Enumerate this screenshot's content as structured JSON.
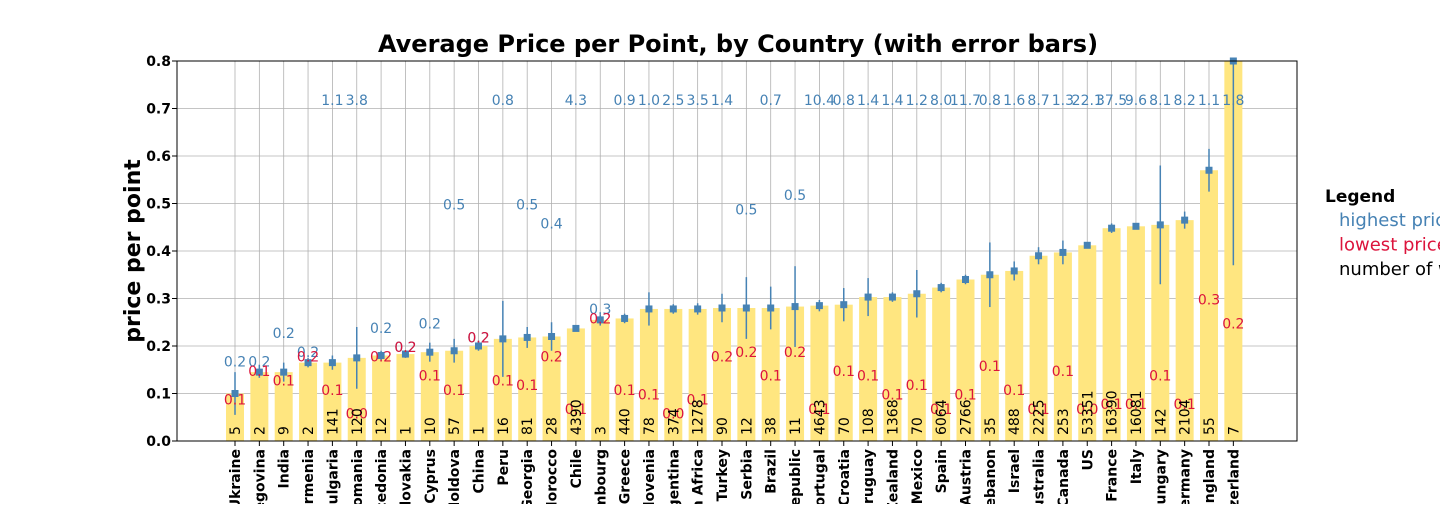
{
  "chart_data": {
    "type": "bar",
    "title": "Average Price per Point, by Country (with error bars)",
    "ylabel": "price per point",
    "xlabel": "",
    "ylim": [
      0,
      0.8
    ],
    "yticks": [
      "0.0",
      "0.1",
      "0.2",
      "0.3",
      "0.4",
      "0.5",
      "0.6",
      "0.7",
      "0.8"
    ],
    "grid": true,
    "categories": [
      "Ukraine",
      "Bosnia and Herzegovina",
      "India",
      "Armenia",
      "Bulgaria",
      "Romania",
      "Macedonia",
      "Slovakia",
      "Cyprus",
      "Moldova",
      "China",
      "Peru",
      "Georgia",
      "Morocco",
      "Chile",
      "Luxembourg",
      "Greece",
      "Slovenia",
      "Argentina",
      "South Africa",
      "Turkey",
      "Serbia",
      "Brazil",
      "Czech Republic",
      "Portugal",
      "Croatia",
      "Uruguay",
      "New Zealand",
      "Mexico",
      "Spain",
      "Austria",
      "Lebanon",
      "Israel",
      "Australia",
      "Canada",
      "US",
      "France",
      "Italy",
      "Hungary",
      "Germany",
      "England",
      "Switzerland"
    ],
    "category_labels_shown": [
      "Ukraine",
      "egovina",
      "India",
      "Armenia",
      "Bulgaria",
      "Romania",
      "acedonia",
      "Slovakia",
      "Cyprus",
      "Moldova",
      "China",
      "Peru",
      "Georgia",
      "Morocco",
      "Chile",
      "mbourg",
      "Greece",
      "Slovenia",
      "rgentina",
      "th Africa",
      "Turkey",
      "Serbia",
      "Brazil",
      "Republic",
      "Portugal",
      "Croatia",
      "Uruguay",
      "Zealand",
      "Mexico",
      "Spain",
      "Austria",
      "ebanon",
      "Israel",
      "ustralia",
      "Canada",
      "US",
      "France",
      "Italy",
      "Hungary",
      "ermany",
      "England",
      "tzerland"
    ],
    "values": [
      0.1,
      0.145,
      0.145,
      0.165,
      0.165,
      0.175,
      0.18,
      0.183,
      0.187,
      0.19,
      0.2,
      0.215,
      0.218,
      0.22,
      0.237,
      0.255,
      0.258,
      0.278,
      0.278,
      0.278,
      0.28,
      0.28,
      0.28,
      0.283,
      0.285,
      0.287,
      0.303,
      0.303,
      0.31,
      0.323,
      0.34,
      0.35,
      0.358,
      0.39,
      0.397,
      0.412,
      0.448,
      0.452,
      0.455,
      0.465,
      0.57,
      0.8
    ],
    "errors": [
      0.045,
      0.012,
      0.02,
      0.01,
      0.015,
      0.065,
      0.01,
      0.008,
      0.02,
      0.025,
      0.01,
      0.08,
      0.022,
      0.03,
      0.006,
      0.012,
      0.01,
      0.035,
      0.01,
      0.012,
      0.03,
      0.065,
      0.045,
      0.085,
      0.012,
      0.035,
      0.04,
      0.01,
      0.05,
      0.01,
      0.01,
      0.068,
      0.02,
      0.018,
      0.025,
      0.005,
      0.01,
      0.006,
      0.125,
      0.018,
      0.045,
      0.43
    ],
    "highest_price": [
      "0.2",
      "0.2",
      "0.2",
      "0.2",
      "1.1",
      "3.8",
      "0.2",
      "0.2",
      "0.2",
      "0.5",
      "0.2",
      "0.8",
      "0.5",
      "0.4",
      "4.3",
      "0.3",
      "0.9",
      "1.0",
      "2.5",
      "3.5",
      "1.4",
      "0.5",
      "0.7",
      "0.5",
      "10.4",
      "0.8",
      "1.4",
      "1.4",
      "1.2",
      "8.0",
      "11.7",
      "0.8",
      "1.6",
      "8.7",
      "1.3",
      "22.1",
      "37.5",
      "9.6",
      "8.1",
      "8.2",
      "1.1",
      "1.8"
    ],
    "highest_y": [
      0.17,
      0.17,
      0.23,
      0.19,
      0.72,
      0.72,
      0.24,
      0.2,
      0.25,
      0.5,
      0.22,
      0.72,
      0.5,
      0.46,
      0.72,
      0.28,
      0.72,
      0.72,
      0.72,
      0.72,
      0.72,
      0.49,
      0.72,
      0.52,
      0.72,
      0.72,
      0.72,
      0.72,
      0.72,
      0.72,
      0.72,
      0.72,
      0.72,
      0.72,
      0.72,
      0.72,
      0.72,
      0.72,
      0.72,
      0.72,
      0.72,
      0.72
    ],
    "lowest_price": [
      "0.1",
      "0.1",
      "0.1",
      "0.2",
      "0.1",
      "0.0",
      "0.2",
      "0.2",
      "0.1",
      "0.1",
      "0.2",
      "0.1",
      "0.1",
      "0.2",
      "0.1",
      "0.2",
      "0.1",
      "0.1",
      "0.0",
      "0.1",
      "0.2",
      "0.2",
      "0.1",
      "0.2",
      "0.1",
      "0.1",
      "0.1",
      "0.1",
      "0.1",
      "0.1",
      "0.1",
      "0.1",
      "0.1",
      "0.1",
      "0.1",
      "0.0",
      "0.1",
      "0.1",
      "0.1",
      "0.1",
      "0.3",
      "0.2"
    ],
    "lowest_y": [
      0.09,
      0.15,
      0.13,
      0.18,
      0.11,
      0.06,
      0.18,
      0.2,
      0.14,
      0.11,
      0.22,
      0.13,
      0.12,
      0.18,
      0.07,
      0.26,
      0.11,
      0.1,
      0.06,
      0.09,
      0.18,
      0.19,
      0.14,
      0.19,
      0.07,
      0.15,
      0.14,
      0.1,
      0.12,
      0.07,
      0.1,
      0.16,
      0.11,
      0.07,
      0.15,
      0.07,
      0.08,
      0.08,
      0.14,
      0.08,
      0.3,
      0.25
    ],
    "wine_count": [
      "5",
      "2",
      "9",
      "2",
      "141",
      "120",
      "12",
      "1",
      "10",
      "57",
      "1",
      "16",
      "81",
      "28",
      "4390",
      "3",
      "440",
      "78",
      "374",
      "1278",
      "90",
      "12",
      "38",
      "11",
      "4643",
      "70",
      "108",
      "1368",
      "70",
      "6064",
      "2766",
      "35",
      "488",
      "2225",
      "253",
      "53351",
      "16390",
      "16081",
      "142",
      "2104",
      "55",
      "7"
    ],
    "legend_title": "Legend",
    "legend": [
      {
        "label": "highest price",
        "color": "#4682b4"
      },
      {
        "label": "lowest price",
        "color": "#dc143c"
      },
      {
        "label": "number of wi",
        "color": "#000000"
      }
    ],
    "colors": {
      "bar": "#ffe680",
      "point": "#4682b4",
      "errorbar": "#4682b4",
      "highest": "#4682b4",
      "lowest": "#dc143c",
      "count": "#000000",
      "grid": "#b0b0b0"
    }
  }
}
